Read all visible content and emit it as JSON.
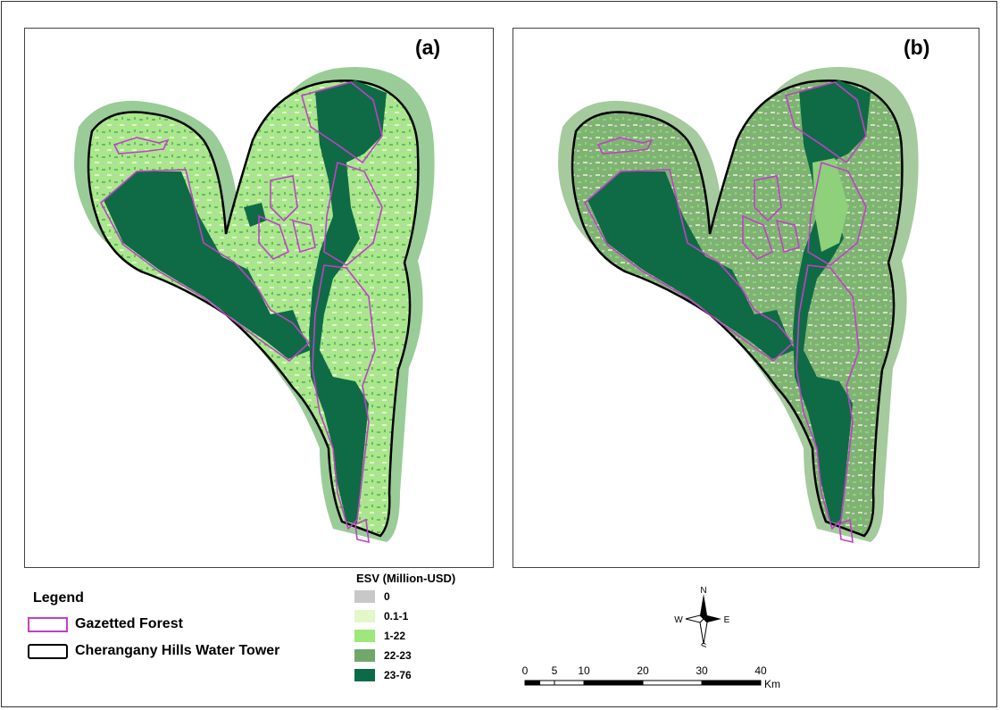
{
  "panels": [
    {
      "label": "(a)",
      "palette": {
        "base": "#a8e88a",
        "mid": "#6fb66c",
        "dark": "#0f6b45",
        "grey": "#c7c7c7",
        "pale": "#dff5c8"
      }
    },
    {
      "label": "(b)",
      "palette": {
        "base": "#7fb373",
        "mid": "#8fd07a",
        "dark": "#0f6b45",
        "grey": "#c7c7c7",
        "pale": "#cfe9b8"
      }
    }
  ],
  "legend": {
    "title": "Legend",
    "items": [
      {
        "label": "Gazetted Forest",
        "color": "#c040c8"
      },
      {
        "label": "Cherangany Hills Water Tower",
        "color": "#000000"
      }
    ]
  },
  "esv_legend": {
    "title": "ESV (Million-USD)",
    "classes": [
      {
        "label": "0",
        "color": "#c8c8c8"
      },
      {
        "label": "0.1-1",
        "color": "#e2f8c9"
      },
      {
        "label": "1-22",
        "color": "#9ce87a"
      },
      {
        "label": "22-23",
        "color": "#6fa86a"
      },
      {
        "label": "23-76",
        "color": "#0b6b46"
      }
    ]
  },
  "north_arrow": {
    "n": "N",
    "s": "S",
    "e": "E",
    "w": "W"
  },
  "scale_bar": {
    "ticks": [
      "0",
      "5",
      "10",
      "20",
      "30",
      "40"
    ],
    "unit": "Km"
  }
}
